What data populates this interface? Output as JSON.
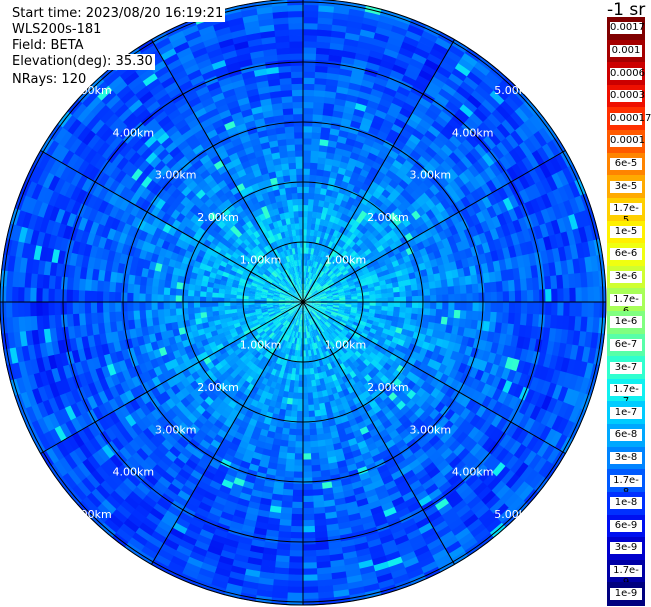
{
  "header": {
    "start_time": "Start time: 2023/08/20 16:19:21",
    "instrument": "WLS200s-181",
    "field": "Field: BETA",
    "elevation": "Elevation(deg): 35.30",
    "nrays": "NRays: 120"
  },
  "colorbar": {
    "title": "-1 sr",
    "labels": [
      "0.0017",
      "0.001",
      "0.0006",
      "0.0003",
      "0.00017",
      "0.0001",
      "6e-5",
      "3e-5",
      "1.7e-5",
      "1e-5",
      "6e-6",
      "3e-6",
      "1.7e-6",
      "1e-6",
      "6e-7",
      "3e-7",
      "1.7e-7",
      "1e-7",
      "6e-8",
      "3e-8",
      "1.7e-8",
      "1e-8",
      "6e-9",
      "3e-9",
      "1.7e-9",
      "1e-9"
    ],
    "colors": [
      "#7f0000",
      "#a50000",
      "#cc0000",
      "#ee1000",
      "#ff3000",
      "#ff5a00",
      "#ff8400",
      "#ffaa00",
      "#ffcf00",
      "#fff000",
      "#f0ff10",
      "#cfff30",
      "#a8ff58",
      "#80ff80",
      "#58ffa8",
      "#30ffcf",
      "#10f0f0",
      "#00ccff",
      "#00a8ff",
      "#0084ff",
      "#005aff",
      "#0030ff",
      "#0010f0",
      "#0000cc",
      "#0000a5",
      "#00007f"
    ]
  },
  "chart_data": {
    "type": "heatmap",
    "projection": "polar",
    "range_rings_km": [
      1,
      2,
      3,
      4,
      5
    ],
    "ring_labels": [
      "1.00km",
      "2.00km",
      "3.00km",
      "4.00km",
      "5.00km"
    ],
    "spoke_interval_deg": 30,
    "rays": 120,
    "field": "BETA",
    "elevation_deg": 35.3,
    "units": "-1 sr",
    "value_range": [
      1e-09,
      0.0017
    ],
    "color_scale": "log"
  }
}
